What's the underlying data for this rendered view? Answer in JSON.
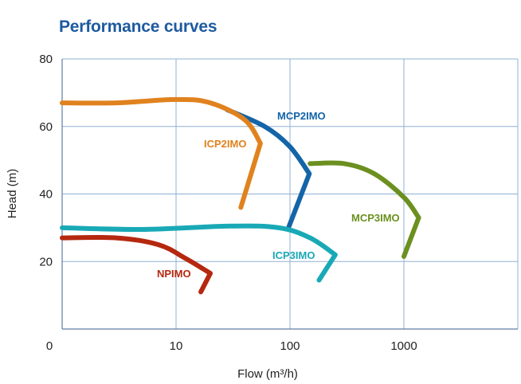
{
  "chart_data": {
    "type": "line",
    "title": "Performance curves",
    "xlabel": "Flow (m³/h)",
    "ylabel": "Head (m)",
    "x_scale": "log",
    "x_tick_labels": [
      "0",
      "10",
      "100",
      "1000"
    ],
    "xlim": [
      1,
      10000
    ],
    "ylim": [
      0,
      80
    ],
    "y_ticks": [
      20,
      40,
      60,
      80
    ],
    "grid": true,
    "series": [
      {
        "name": "NPIMO",
        "color": "#b5280f",
        "x": [
          1,
          3,
          7,
          12,
          20,
          16.5
        ],
        "y": [
          27,
          27,
          25,
          21,
          16.5,
          11
        ]
      },
      {
        "name": "ICP2IMO",
        "color": "#e0821e",
        "x": [
          1,
          3,
          10,
          20,
          40,
          55,
          37
        ],
        "y": [
          67,
          67,
          68,
          67,
          62,
          55,
          36
        ]
      },
      {
        "name": "MCP2IMO",
        "color": "#1464a8",
        "x": [
          28,
          60,
          100,
          148,
          97
        ],
        "y": [
          65,
          60,
          54,
          46,
          30
        ]
      },
      {
        "name": "ICP3IMO",
        "color": "#19a9b6",
        "x": [
          1,
          5,
          30,
          80,
          150,
          250,
          180
        ],
        "y": [
          30,
          29.5,
          30.5,
          30,
          27,
          22,
          14.5
        ]
      },
      {
        "name": "MCP3IMO",
        "color": "#6b9020",
        "x": [
          150,
          300,
          550,
          1000,
          1350,
          1000
        ],
        "y": [
          49,
          49,
          46,
          39,
          33,
          21.5
        ]
      }
    ]
  }
}
